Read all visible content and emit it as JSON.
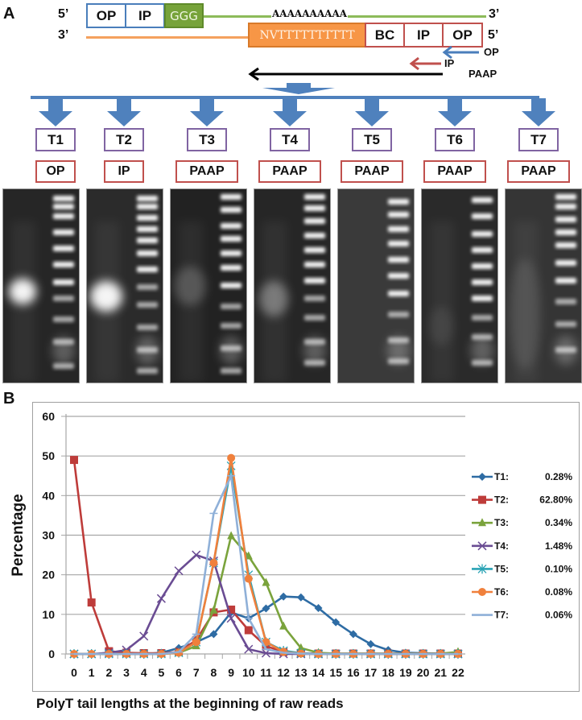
{
  "panel_a": {
    "letter": "A",
    "top_strand": {
      "five_prime": "5’",
      "three_prime": "3’",
      "segments": [
        "OP",
        "IP",
        "GGG"
      ],
      "poly_a": "AAAAAAAAAA"
    },
    "bottom_strand": {
      "three_prime": "3’",
      "five_prime": "5’",
      "segments": [
        "NVTTTTTTTTTT",
        "BC",
        "IP",
        "OP"
      ]
    },
    "primers": [
      {
        "label": "OP",
        "color": "#4a7ebb"
      },
      {
        "label": "IP",
        "color": "#c0504d"
      },
      {
        "label": "PAAP",
        "color": "#000000"
      }
    ],
    "tubes": [
      {
        "tube": "T1",
        "primer": "OP"
      },
      {
        "tube": "T2",
        "primer": "IP"
      },
      {
        "tube": "T3",
        "primer": "PAAP"
      },
      {
        "tube": "T4",
        "primer": "PAAP"
      },
      {
        "tube": "T5",
        "primer": "PAAP"
      },
      {
        "tube": "T6",
        "primer": "PAAP"
      },
      {
        "tube": "T7",
        "primer": "PAAP"
      }
    ],
    "colors": {
      "arrow_blue": "#4f81bd",
      "tube_border": "#8064a2",
      "primer_border": "#c0504d"
    }
  },
  "panel_b": {
    "letter": "B"
  },
  "chart_data": {
    "type": "line",
    "title": "",
    "xlabel": "PolyT tail lengths at the beginning of raw reads",
    "ylabel": "Percentage",
    "x": [
      0,
      1,
      2,
      3,
      4,
      5,
      6,
      7,
      8,
      9,
      10,
      11,
      12,
      13,
      14,
      15,
      16,
      17,
      18,
      19,
      20,
      21,
      22
    ],
    "ylim": [
      0,
      60
    ],
    "yticks": [
      0,
      10,
      20,
      30,
      40,
      50,
      60
    ],
    "grid": true,
    "legend_position": "right",
    "series": [
      {
        "name": "T1:",
        "pct": "0.28%",
        "color": "#2e6ca4",
        "marker": "diamond",
        "values": [
          0,
          0,
          0,
          0,
          0,
          0.3,
          1.5,
          3,
          5,
          10.5,
          9,
          11.5,
          14.5,
          14.3,
          11.6,
          8,
          5,
          2.5,
          1,
          0.3,
          0.2,
          0.1,
          0.1
        ]
      },
      {
        "name": "T2:",
        "pct": "62.80%",
        "color": "#be3c3a",
        "marker": "square",
        "values": [
          49,
          13,
          0.7,
          0.3,
          0.2,
          0.2,
          0.5,
          3.5,
          10.5,
          11.2,
          6,
          2,
          0.5,
          0.2,
          0.1,
          0.1,
          0.1,
          0.1,
          0.1,
          0.1,
          0.1,
          0.1,
          0.1
        ]
      },
      {
        "name": "T3:",
        "pct": "0.34%",
        "color": "#7aa33c",
        "marker": "triangle",
        "values": [
          0,
          0,
          0,
          0,
          0,
          0,
          0.3,
          2,
          11,
          29.8,
          24.7,
          18,
          7,
          1.5,
          0.3,
          0.1,
          0.1,
          0.1,
          0.1,
          0.1,
          0.1,
          0.1,
          0.5
        ]
      },
      {
        "name": "T4:",
        "pct": "1.48%",
        "color": "#6a4c93",
        "marker": "x",
        "values": [
          0,
          0,
          0.3,
          1,
          4.5,
          14,
          21,
          25,
          23.5,
          9,
          1.2,
          0.2,
          0,
          0,
          0,
          0,
          0,
          0,
          0,
          0,
          0,
          0,
          0
        ]
      },
      {
        "name": "T5:",
        "pct": "0.10%",
        "color": "#2aa3b5",
        "marker": "star",
        "values": [
          0,
          0,
          0,
          0,
          0,
          0,
          0.3,
          3,
          23,
          47.5,
          20,
          3,
          0.8,
          0.2,
          0,
          0,
          0,
          0,
          0,
          0,
          0,
          0,
          0
        ]
      },
      {
        "name": "T6:",
        "pct": "0.08%",
        "color": "#f0803c",
        "marker": "circle",
        "values": [
          0,
          0,
          0,
          0,
          0,
          0,
          0.3,
          3,
          23,
          49.5,
          19,
          3,
          0.5,
          0.1,
          0,
          0,
          0,
          0,
          0,
          0,
          0,
          0,
          0
        ]
      },
      {
        "name": "T7:",
        "pct": "0.06%",
        "color": "#8fb0d8",
        "marker": "dash",
        "values": [
          0,
          0,
          0,
          0,
          0,
          0,
          0.5,
          5,
          35.5,
          45,
          9,
          1.2,
          0.3,
          0.1,
          0,
          0,
          0,
          0,
          0,
          0,
          0,
          0,
          0
        ]
      }
    ]
  }
}
